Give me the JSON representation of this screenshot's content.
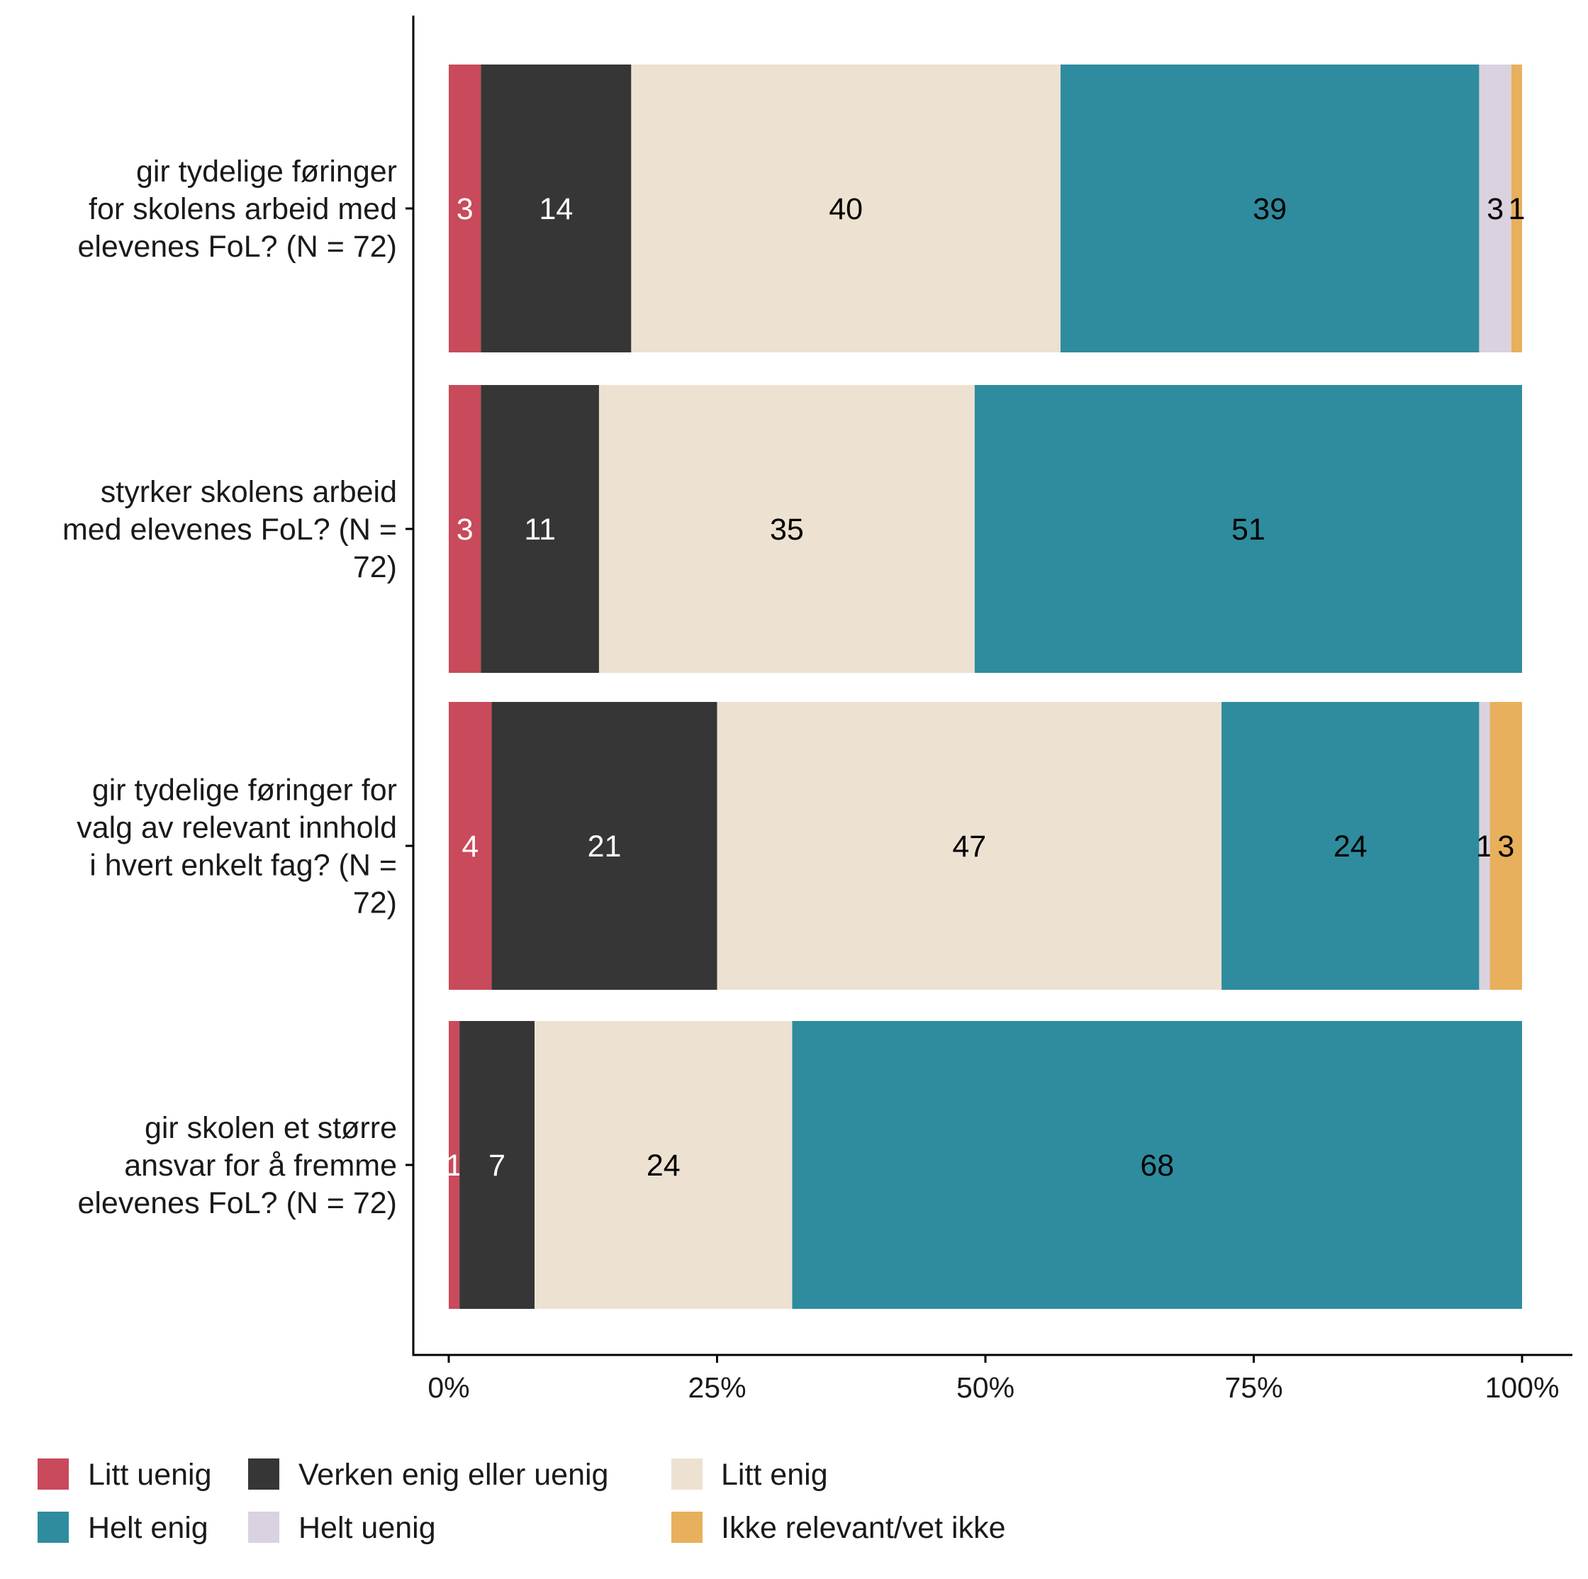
{
  "chart_data": {
    "type": "bar",
    "orientation": "horizontal",
    "stacked": true,
    "title": "",
    "xlabel": "",
    "ylabel": "",
    "xlim": [
      0,
      100
    ],
    "x_ticks": [
      "0%",
      "25%",
      "50%",
      "75%",
      "100%"
    ],
    "grid": false,
    "legend_position": "bottom",
    "categories": [
      [
        "gir tydelige føringer",
        "for skolens arbeid med",
        "elevenes FoL? (N = 72)"
      ],
      [
        "styrker skolens arbeid",
        "med elevenes FoL? (N =",
        "72)"
      ],
      [
        "gir tydelige føringer for",
        "valg av relevant innhold",
        "i hvert enkelt fag? (N =",
        "72)"
      ],
      [
        "gir skolen et større",
        "ansvar for å fremme",
        "elevenes FoL? (N = 72)"
      ]
    ],
    "series": [
      {
        "name": "Litt uenig",
        "color": "#C94A5A",
        "label_color": "#ffffff",
        "values": [
          3,
          3,
          4,
          1
        ]
      },
      {
        "name": "Verken enig eller uenig",
        "color": "#363636",
        "label_color": "#ffffff",
        "values": [
          14,
          11,
          21,
          7
        ]
      },
      {
        "name": "Litt enig",
        "color": "#EDE1D1",
        "label_color": "#000000",
        "values": [
          40,
          35,
          47,
          24
        ]
      },
      {
        "name": "Helt enig",
        "color": "#2E8C9E",
        "label_color": "#000000",
        "values": [
          39,
          51,
          24,
          68
        ]
      },
      {
        "name": "Helt uenig",
        "color": "#DAD2DF",
        "label_color": "#000000",
        "values": [
          3,
          0,
          1,
          0
        ]
      },
      {
        "name": "Ikke relevant/vet ikke",
        "color": "#E8AF5C",
        "label_color": "#000000",
        "values": [
          1,
          0,
          3,
          0
        ]
      }
    ],
    "legend_order": [
      0,
      1,
      2,
      3,
      4,
      5
    ]
  }
}
